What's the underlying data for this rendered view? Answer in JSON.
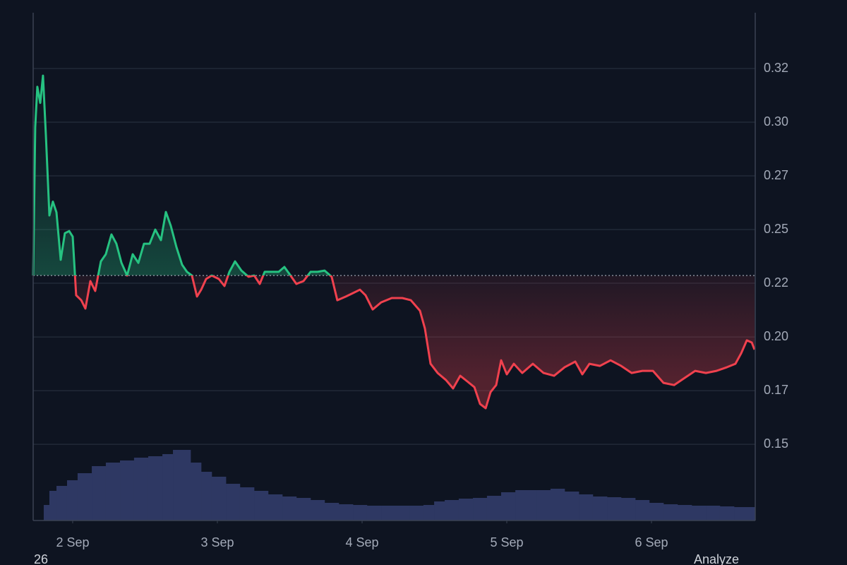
{
  "chart_data": {
    "type": "area",
    "baseline": 0.2286,
    "up_color": "#26c281",
    "down_color": "#f0414e",
    "x": [
      -0.273,
      -0.259,
      -0.244,
      -0.224,
      -0.205,
      -0.185,
      -0.161,
      -0.137,
      -0.112,
      -0.083,
      -0.054,
      -0.024,
      0,
      0.024,
      0.059,
      0.088,
      0.122,
      0.156,
      0.195,
      0.229,
      0.268,
      0.302,
      0.337,
      0.376,
      0.415,
      0.454,
      0.493,
      0.532,
      0.571,
      0.61,
      0.644,
      0.678,
      0.717,
      0.756,
      0.79,
      0.824,
      0.859,
      0.888,
      0.922,
      0.961,
      1.01,
      1.049,
      1.083,
      1.122,
      1.166,
      1.215,
      1.254,
      1.293,
      1.327,
      1.376,
      1.424,
      1.463,
      1.498,
      1.546,
      1.595,
      1.644,
      1.693,
      1.741,
      1.79,
      1.829,
      1.888,
      1.937,
      1.985,
      2.024,
      2.073,
      2.132,
      2.205,
      2.278,
      2.337,
      2.4,
      2.434,
      2.473,
      2.522,
      2.58,
      2.629,
      2.678,
      2.727,
      2.776,
      2.815,
      2.854,
      2.888,
      2.927,
      2.961,
      3.0,
      3.049,
      3.107,
      3.18,
      3.254,
      3.327,
      3.4,
      3.473,
      3.522,
      3.571,
      3.644,
      3.717,
      3.79,
      3.863,
      3.937,
      4.01,
      4.083,
      4.156,
      4.229,
      4.302,
      4.376,
      4.449,
      4.522,
      4.58,
      4.62,
      4.659,
      4.693,
      4.712
    ],
    "values": [
      0.2286,
      0.2977,
      0.3165,
      0.309,
      0.3217,
      0.294,
      0.2566,
      0.263,
      0.258,
      0.2359,
      0.2483,
      0.2493,
      0.2467,
      0.2194,
      0.2171,
      0.2132,
      0.226,
      0.2214,
      0.2352,
      0.2385,
      0.2477,
      0.2434,
      0.2345,
      0.2286,
      0.2385,
      0.2345,
      0.2434,
      0.2434,
      0.25,
      0.2451,
      0.2582,
      0.2517,
      0.2418,
      0.2336,
      0.2303,
      0.2286,
      0.2188,
      0.222,
      0.227,
      0.2286,
      0.227,
      0.2237,
      0.2303,
      0.2352,
      0.2309,
      0.228,
      0.2286,
      0.2247,
      0.2303,
      0.2303,
      0.2303,
      0.2326,
      0.2293,
      0.2247,
      0.226,
      0.2303,
      0.2303,
      0.2309,
      0.228,
      0.2171,
      0.2188,
      0.2204,
      0.222,
      0.2194,
      0.2128,
      0.2161,
      0.2181,
      0.2181,
      0.2171,
      0.2122,
      0.2039,
      0.1875,
      0.1832,
      0.1799,
      0.176,
      0.1819,
      0.1793,
      0.1766,
      0.1688,
      0.1668,
      0.1743,
      0.1776,
      0.1891,
      0.1826,
      0.1875,
      0.1832,
      0.1875,
      0.1832,
      0.1819,
      0.1859,
      0.1885,
      0.1826,
      0.1875,
      0.1865,
      0.1891,
      0.1865,
      0.1832,
      0.1842,
      0.1842,
      0.1786,
      0.1776,
      0.1809,
      0.1842,
      0.1832,
      0.1842,
      0.1859,
      0.1875,
      0.1924,
      0.1984,
      0.1974,
      0.1941
    ],
    "volume": {
      "color": "#2e3863",
      "x": [
        -0.234,
        -0.2,
        -0.161,
        -0.112,
        -0.039,
        0.034,
        0.132,
        0.229,
        0.327,
        0.424,
        0.522,
        0.62,
        0.693,
        0.756,
        0.815,
        0.888,
        0.961,
        1.059,
        1.156,
        1.254,
        1.351,
        1.449,
        1.546,
        1.644,
        1.741,
        1.839,
        1.937,
        2.034,
        2.132,
        2.229,
        2.327,
        2.424,
        2.498,
        2.571,
        2.668,
        2.766,
        2.863,
        2.961,
        3.059,
        3.205,
        3.302,
        3.4,
        3.498,
        3.595,
        3.693,
        3.79,
        3.888,
        3.985,
        4.083,
        4.18,
        4.278,
        4.376,
        4.473,
        4.571,
        4.668
      ],
      "values": [
        0,
        22,
        42,
        49,
        57,
        67,
        77,
        82,
        85,
        89,
        91,
        94,
        100,
        100,
        82,
        69,
        62,
        52,
        47,
        42,
        37,
        34,
        32,
        29,
        25,
        23,
        22,
        21,
        21,
        21,
        21,
        22,
        27,
        29,
        31,
        32,
        35,
        40,
        43,
        43,
        45,
        41,
        37,
        34,
        33,
        32,
        29,
        25,
        23,
        22,
        21,
        21,
        20,
        19,
        19
      ]
    },
    "xlim": [
      -0.273,
      4.717
    ],
    "ylim": [
      0.1145,
      0.351
    ],
    "xticks": [
      {
        "value": 0,
        "label": "2 Sep"
      },
      {
        "value": 1,
        "label": "3 Sep"
      },
      {
        "value": 2,
        "label": "4 Sep"
      },
      {
        "value": 3,
        "label": "5 Sep"
      },
      {
        "value": 4,
        "label": "6 Sep"
      }
    ],
    "yticks": [
      {
        "value": 0.15,
        "label": "0.15"
      },
      {
        "value": 0.175,
        "label": "0.17"
      },
      {
        "value": 0.2,
        "label": "0.20"
      },
      {
        "value": 0.225,
        "label": "0.22"
      },
      {
        "value": 0.25,
        "label": "0.25"
      },
      {
        "value": 0.275,
        "label": "0.27"
      },
      {
        "value": 0.3,
        "label": "0.30"
      },
      {
        "value": 0.325,
        "label": "0.32"
      }
    ],
    "grid": true
  },
  "footer": {
    "left": "26",
    "right": "Analyze"
  }
}
